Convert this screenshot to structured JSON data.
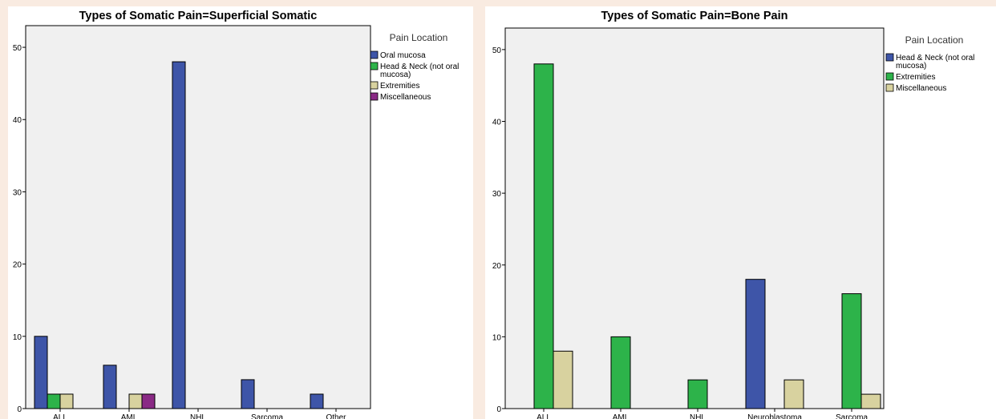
{
  "chart_data": [
    {
      "type": "bar",
      "title": "Types of Somatic Pain=Superficial Somatic",
      "categories": [
        "ALL",
        "AML",
        "NHL",
        "Sarcoma",
        "Other"
      ],
      "ylim": [
        0,
        53
      ],
      "yticks": [
        0,
        10,
        20,
        30,
        40,
        50
      ],
      "legend_title": "Pain Location",
      "legend_position": "right",
      "grid": false,
      "series": [
        {
          "name": "Oral mucosa",
          "name_lines": [
            "Oral mucosa"
          ],
          "color": "#3e55a8",
          "values": [
            10,
            6,
            48,
            4,
            2
          ]
        },
        {
          "name": "Head & Neck (not oral mucosa)",
          "name_lines": [
            "Head & Neck (not oral",
            "mucosa)"
          ],
          "color": "#2db34a",
          "values": [
            2,
            0,
            0,
            0,
            0
          ]
        },
        {
          "name": "Extremities",
          "name_lines": [
            "Extremities"
          ],
          "color": "#d8d29f",
          "values": [
            2,
            2,
            0,
            0,
            0
          ]
        },
        {
          "name": "Miscellaneous",
          "name_lines": [
            "Miscellaneous"
          ],
          "color": "#8a2a85",
          "values": [
            0,
            2,
            0,
            0,
            0
          ]
        }
      ]
    },
    {
      "type": "bar",
      "title": "Types of Somatic Pain=Bone Pain",
      "categories": [
        "ALL",
        "AML",
        "NHL",
        "Neuroblastoma",
        "Sarcoma"
      ],
      "ylim": [
        0,
        53
      ],
      "yticks": [
        0,
        10,
        20,
        30,
        40,
        50
      ],
      "legend_title": "Pain Location",
      "legend_position": "right",
      "grid": false,
      "series": [
        {
          "name": "Head & Neck (not oral mucosa)",
          "name_lines": [
            "Head & Neck (not oral",
            "mucosa)"
          ],
          "color": "#3e55a8",
          "values": [
            0,
            0,
            0,
            18,
            0
          ]
        },
        {
          "name": "Extremities",
          "name_lines": [
            "Extremities"
          ],
          "color": "#2db34a",
          "values": [
            48,
            10,
            4,
            0,
            16
          ]
        },
        {
          "name": "Miscellaneous",
          "name_lines": [
            "Miscellaneous"
          ],
          "color": "#d8d29f",
          "values": [
            8,
            0,
            0,
            4,
            2
          ]
        }
      ]
    }
  ]
}
